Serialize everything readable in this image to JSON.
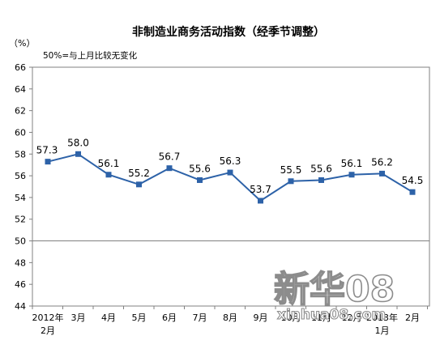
{
  "chart_data": {
    "type": "line",
    "title": "非制造业商务活动指数（经季节调整）",
    "unit": "（%）",
    "note": "50%=与上月比较无变化",
    "categories": [
      [
        "2012年",
        "2月"
      ],
      [
        "3月"
      ],
      [
        "4月"
      ],
      [
        "5月"
      ],
      [
        "6月"
      ],
      [
        "7月"
      ],
      [
        "8月"
      ],
      [
        "9月"
      ],
      [
        "10月"
      ],
      [
        "11月"
      ],
      [
        "12月"
      ],
      [
        "2013年",
        "1月"
      ],
      [
        "2月"
      ]
    ],
    "values": [
      57.3,
      58.0,
      56.1,
      55.2,
      56.7,
      55.6,
      56.3,
      53.7,
      55.5,
      55.6,
      56.1,
      56.2,
      54.5
    ],
    "value_labels": [
      "57.3",
      "58.0",
      "56.1",
      "55.2",
      "56.7",
      "55.6",
      "56.3",
      "53.7",
      "55.5",
      "55.6",
      "56.1",
      "56.2",
      "54.5"
    ],
    "ylim": [
      44,
      66
    ],
    "yticks": [
      44,
      46,
      48,
      50,
      52,
      54,
      56,
      58,
      60,
      62,
      64,
      66
    ],
    "reference_line": 50,
    "grid": false,
    "legend": "none",
    "colors": {
      "series": "#2d62a8",
      "axis": "#808080"
    }
  },
  "watermark": {
    "main": "新华08",
    "sub": "xinhua08.com"
  }
}
